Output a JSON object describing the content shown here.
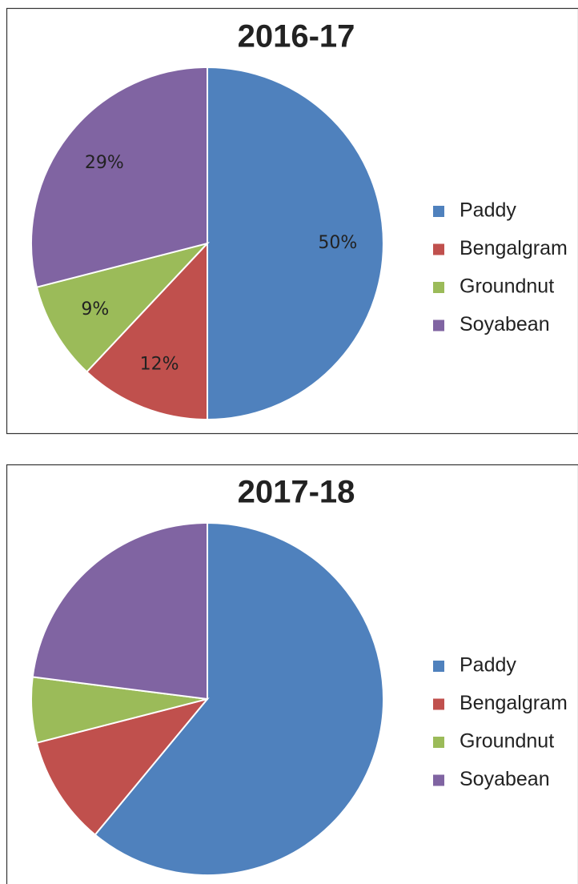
{
  "chart_data": [
    {
      "type": "pie",
      "title": "2016-17",
      "categories": [
        "Paddy",
        "Bengalgram",
        "Groundnut",
        "Soyabean"
      ],
      "values": [
        50,
        12,
        9,
        29
      ],
      "value_labels": [
        "50%",
        "12%",
        "9%",
        "29%"
      ],
      "colors": [
        "#4f81bd",
        "#c0504d",
        "#9bbb59",
        "#8064a2"
      ],
      "legend": "right"
    },
    {
      "type": "pie",
      "title": "2017-18",
      "categories": [
        "Paddy",
        "Bengalgram",
        "Groundnut",
        "Soyabean"
      ],
      "values": [
        61,
        10,
        6,
        23
      ],
      "colors": [
        "#4f81bd",
        "#c0504d",
        "#9bbb59",
        "#8064a2"
      ],
      "legend": "right"
    }
  ]
}
